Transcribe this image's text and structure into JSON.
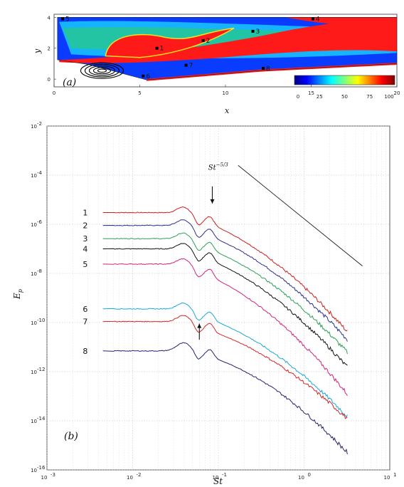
{
  "chart_data": [
    {
      "type": "heatmap",
      "panel_label": "(a)",
      "xlabel": "x",
      "ylabel": "y",
      "xlim": [
        0,
        20
      ],
      "ylim": [
        -0.5,
        4.2
      ],
      "xticks": [
        "0",
        "5",
        "10",
        "15",
        "20"
      ],
      "yticks": [
        "0",
        "2",
        "4"
      ],
      "colorbar": {
        "ticks": [
          "0",
          "25",
          "50",
          "75",
          "100"
        ],
        "range": [
          0,
          100
        ]
      },
      "colors": {
        "low": "#0a3cff",
        "mid1": "#19c8ff",
        "mid2": "#2ed15a",
        "mid3": "#f2e21d",
        "high": "#ff1a1a"
      },
      "points": [
        {
          "label": "1",
          "x": 6.0,
          "y": 2.0
        },
        {
          "label": "2",
          "x": 8.7,
          "y": 2.5
        },
        {
          "label": "3",
          "x": 11.6,
          "y": 3.1
        },
        {
          "label": "4",
          "x": 15.1,
          "y": 3.9
        },
        {
          "label": "5",
          "x": 0.5,
          "y": 3.9
        },
        {
          "label": "6",
          "x": 5.2,
          "y": 0.2
        },
        {
          "label": "7",
          "x": 7.7,
          "y": 0.9
        },
        {
          "label": "8",
          "x": 12.2,
          "y": 0.7
        }
      ]
    },
    {
      "type": "line",
      "panel_label": "(b)",
      "xlabel": "St",
      "ylabel": "E",
      "ylabel_sub": "p",
      "xscale": "log",
      "yscale": "log",
      "xlim": [
        0.001,
        10
      ],
      "ylim": [
        1e-16,
        0.01
      ],
      "xticks": [
        "10",
        "10",
        "10",
        "10",
        "10"
      ],
      "xtick_exps": [
        "-3",
        "-2",
        "-1",
        "0",
        "1"
      ],
      "yticks": [
        "10",
        "10",
        "10",
        "10",
        "10",
        "10",
        "10",
        "10"
      ],
      "ytick_exps": [
        "-2",
        "-4",
        "-6",
        "-8",
        "-10",
        "-12",
        "-14",
        "-16"
      ],
      "grid": true,
      "annotation": {
        "text": "St",
        "exponent": "−5/3",
        "x": [
          0.17,
          4.8
        ],
        "y": [
          0.00025,
          2e-08
        ]
      },
      "arrows": [
        {
          "x": 0.085,
          "y_from": 3.5e-05,
          "y_to": 7e-06,
          "direction": "down"
        },
        {
          "x": 0.06,
          "y_from": 2e-11,
          "y_to": 9e-11,
          "direction": "up"
        }
      ],
      "series": [
        {
          "name": "1",
          "color": "#cc1f1f",
          "level": 3e-06,
          "plateau_end": 0.02,
          "end_value": 4.2e-11
        },
        {
          "name": "2",
          "color": "#2b2e8e",
          "level": 9e-07,
          "plateau_end": 0.02,
          "end_value": 2e-11
        },
        {
          "name": "3",
          "color": "#2ca05a",
          "level": 2.6e-07,
          "plateau_end": 0.02,
          "end_value": 6e-12
        },
        {
          "name": "4",
          "color": "#111111",
          "level": 1e-07,
          "plateau_end": 0.02,
          "end_value": 1.5e-12
        },
        {
          "name": "5",
          "color": "#d4237a",
          "level": 2.4e-08,
          "plateau_end": 0.02,
          "end_value": 1.2e-13
        },
        {
          "name": "6",
          "color": "#1aa9d6",
          "level": 3.6e-10,
          "plateau_end": 0.02,
          "end_value": 1.5e-14
        },
        {
          "name": "7",
          "color": "#d42727",
          "level": 1.1e-10,
          "plateau_end": 0.02,
          "end_value": 1.2e-14
        },
        {
          "name": "8",
          "color": "#24246e",
          "level": 7e-12,
          "plateau_end": 0.03,
          "end_value": 5e-16
        }
      ]
    }
  ]
}
